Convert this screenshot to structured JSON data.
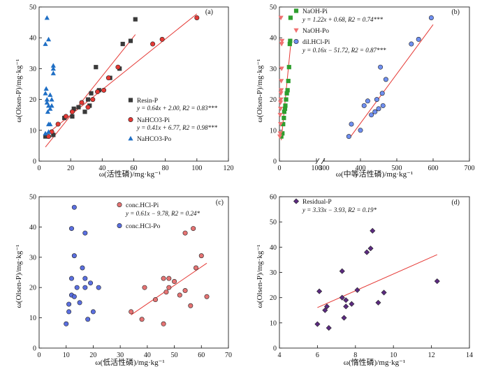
{
  "chart_data": [
    {
      "type": "scatter",
      "panel_label": "(a)",
      "xlabel": "ω(活性磷)/mg·kg⁻¹",
      "ylabel": "ω(Olsen-P)/mg·kg⁻¹",
      "xlim": [
        0,
        120
      ],
      "ylim": [
        0,
        50
      ],
      "xticks": [
        0,
        20,
        40,
        60,
        80,
        100,
        120
      ],
      "yticks": [
        0,
        10,
        20,
        30,
        40,
        50
      ],
      "legend_position": "right",
      "series": [
        {
          "name": "Resin-P",
          "equation": "y = 0.64x + 2.00, R2 = 0.83***",
          "marker": "square",
          "color": "#3a3a3a",
          "line": {
            "slope": 0.64,
            "intercept": 2.0,
            "x_range": [
              4,
              61
            ]
          },
          "points": [
            [
              4,
              8
            ],
            [
              9,
              8.5
            ],
            [
              16,
              14
            ],
            [
              21,
              14.5
            ],
            [
              22,
              17
            ],
            [
              25,
              17.5
            ],
            [
              29,
              16
            ],
            [
              31,
              20
            ],
            [
              32,
              18
            ],
            [
              33,
              22
            ],
            [
              36,
              30.5
            ],
            [
              38,
              23
            ],
            [
              45,
              27
            ],
            [
              51,
              30
            ],
            [
              53,
              38
            ],
            [
              58,
              39
            ],
            [
              61,
              46
            ]
          ]
        },
        {
          "name": "NaHCO3-Pi",
          "equation": "y = 0.41x + 6.77, R2 = 0.98***",
          "marker": "circle",
          "color": "#e53935",
          "line": {
            "slope": 0.41,
            "intercept": 6.77,
            "x_range": [
              4,
              100
            ]
          },
          "points": [
            [
              6,
              8
            ],
            [
              8,
              9.5
            ],
            [
              12,
              12
            ],
            [
              17,
              14.5
            ],
            [
              21,
              16
            ],
            [
              27,
              19
            ],
            [
              31,
              17.5
            ],
            [
              34,
              20
            ],
            [
              37,
              22.5
            ],
            [
              41,
              23
            ],
            [
              44,
              27
            ],
            [
              50,
              30.5
            ],
            [
              72,
              38
            ],
            [
              78,
              39.5
            ],
            [
              100,
              46.5
            ]
          ]
        },
        {
          "name": "NaHCO3-Po",
          "marker": "triangle",
          "color": "#1f6fc5",
          "points": [
            [
              4,
              9
            ],
            [
              4,
              22
            ],
            [
              4,
              38
            ],
            [
              4.5,
              23.5
            ],
            [
              5,
              19
            ],
            [
              5,
              20
            ],
            [
              5,
              46.5
            ],
            [
              5.5,
              16
            ],
            [
              6,
              12
            ],
            [
              6,
              18
            ],
            [
              6,
              39.5
            ],
            [
              6,
              9.5
            ],
            [
              7,
              17
            ],
            [
              7,
              21.5
            ],
            [
              7,
              12
            ],
            [
              8,
              18
            ],
            [
              8,
              20
            ],
            [
              9,
              28.5
            ],
            [
              9,
              30
            ],
            [
              9,
              31
            ]
          ]
        }
      ]
    },
    {
      "type": "scatter",
      "panel_label": "(b)",
      "xlabel": "ω(中等活性磷)/mg·kg⁻¹",
      "ylabel": "ω(Olsen-P)/mg·kg⁻¹",
      "xlim": [
        0,
        700
      ],
      "ylim": [
        0,
        50
      ],
      "axis_break": true,
      "xticks": [
        0,
        100,
        300,
        400,
        500,
        600,
        700
      ],
      "yticks": [
        0,
        10,
        20,
        30,
        40,
        50
      ],
      "legend_position": "top-right",
      "series": [
        {
          "name": "NaOH-Pi",
          "equation": "y = 1.22x + 0.68, R2 = 0.74***",
          "marker": "square",
          "color": "#2e9e2e",
          "line": {
            "slope": 1.22,
            "intercept": 0.68,
            "x_range": [
              5,
              32
            ]
          },
          "points": [
            [
              5,
              8
            ],
            [
              8,
              9
            ],
            [
              10,
              12
            ],
            [
              12,
              14
            ],
            [
              13,
              16
            ],
            [
              15,
              17
            ],
            [
              16,
              18
            ],
            [
              18,
              20
            ],
            [
              20,
              22
            ],
            [
              22,
              23
            ],
            [
              24,
              26
            ],
            [
              26,
              30.5
            ],
            [
              28,
              38
            ],
            [
              29,
              39
            ],
            [
              30,
              46.5
            ]
          ]
        },
        {
          "name": "NaOH-Po",
          "marker": "triangle-down",
          "color": "#f07070",
          "points": [
            [
              1,
              8
            ],
            [
              2,
              9
            ],
            [
              2,
              15
            ],
            [
              3,
              17
            ],
            [
              3,
              19
            ],
            [
              4,
              20
            ],
            [
              4,
              22
            ],
            [
              5,
              23
            ],
            [
              5,
              26
            ],
            [
              6,
              30
            ],
            [
              6,
              38
            ],
            [
              7,
              39
            ],
            [
              4,
              46.5
            ],
            [
              3,
              12
            ]
          ]
        },
        {
          "name": "dil.HCl-Pi",
          "equation": "y = 0.16x − 51.72, R2 = 0.87***",
          "marker": "circle",
          "color": "#6f8ff0",
          "line": {
            "slope": 0.16,
            "intercept": -51.72,
            "x_range": [
              370,
              600
            ]
          },
          "points": [
            [
              368,
              8
            ],
            [
              375,
              12
            ],
            [
              400,
              10
            ],
            [
              410,
              18
            ],
            [
              420,
              19.5
            ],
            [
              430,
              15
            ],
            [
              440,
              16
            ],
            [
              445,
              20
            ],
            [
              450,
              17
            ],
            [
              455,
              30.5
            ],
            [
              460,
              22
            ],
            [
              462,
              18
            ],
            [
              470,
              26.5
            ],
            [
              540,
              38
            ],
            [
              560,
              39.5
            ],
            [
              595,
              46.5
            ]
          ]
        }
      ]
    },
    {
      "type": "scatter",
      "panel_label": "(c)",
      "xlabel": "ω(低活性磷)/mg·kg⁻¹",
      "ylabel": "ω(Olsen-P)/mg·kg⁻¹",
      "xlim": [
        0,
        70
      ],
      "ylim": [
        0,
        50
      ],
      "xticks": [
        0,
        10,
        20,
        30,
        40,
        50,
        60,
        70
      ],
      "yticks": [
        0,
        10,
        20,
        30,
        40,
        50
      ],
      "legend_position": "top-center",
      "series": [
        {
          "name": "conc.HCl-Pi",
          "equation": "y = 0.61x − 9.78, R2 = 0.24*",
          "marker": "circle",
          "color": "#e57373",
          "line": {
            "slope": 0.61,
            "intercept": -9.78,
            "x_range": [
              34,
              62
            ]
          },
          "points": [
            [
              34,
              12
            ],
            [
              38,
              9.5
            ],
            [
              39,
              20
            ],
            [
              43,
              16
            ],
            [
              46,
              8
            ],
            [
              46,
              23
            ],
            [
              47,
              18.5
            ],
            [
              48,
              20
            ],
            [
              48,
              23
            ],
            [
              50,
              22
            ],
            [
              52,
              17.5
            ],
            [
              54,
              38
            ],
            [
              54,
              19
            ],
            [
              56,
              14
            ],
            [
              57,
              39.5
            ],
            [
              58,
              26.5
            ],
            [
              60,
              30.5
            ],
            [
              62,
              17
            ]
          ]
        },
        {
          "name": "conc.HCl-Po",
          "marker": "circle",
          "color": "#5a6fe0",
          "points": [
            [
              10,
              8
            ],
            [
              11,
              12
            ],
            [
              11,
              14.5
            ],
            [
              12,
              17.5
            ],
            [
              12,
              23
            ],
            [
              12,
              39.5
            ],
            [
              13,
              17
            ],
            [
              13,
              46.5
            ],
            [
              13,
              30.5
            ],
            [
              14,
              20
            ],
            [
              15,
              15
            ],
            [
              16,
              26.5
            ],
            [
              17,
              20
            ],
            [
              17,
              38
            ],
            [
              17,
              23
            ],
            [
              18,
              9.5
            ],
            [
              19,
              21.5
            ],
            [
              20,
              12
            ],
            [
              22,
              20
            ]
          ]
        }
      ]
    },
    {
      "type": "scatter",
      "panel_label": "(d)",
      "xlabel": "ω(惰性磷)/mg·kg⁻¹",
      "ylabel": "ω(Olsen-P)/mg·kg⁻¹",
      "xlim": [
        4,
        14
      ],
      "ylim": [
        0,
        60
      ],
      "xticks": [
        4,
        6,
        8,
        10,
        12,
        14
      ],
      "yticks": [
        0,
        10,
        20,
        30,
        40,
        50,
        60
      ],
      "legend_position": "top-left",
      "series": [
        {
          "name": "Residual-P",
          "equation": "y = 3.33x − 3.93, R2 = 0.19*",
          "marker": "diamond",
          "color": "#5b2a80",
          "line": {
            "slope": 3.33,
            "intercept": -3.93,
            "x_range": [
              6,
              12.3
            ]
          },
          "points": [
            [
              6.0,
              9.5
            ],
            [
              6.1,
              22.5
            ],
            [
              6.4,
              15
            ],
            [
              6.5,
              16.5
            ],
            [
              6.6,
              8
            ],
            [
              7.3,
              30.5
            ],
            [
              7.3,
              20
            ],
            [
              7.4,
              12
            ],
            [
              7.5,
              19
            ],
            [
              7.5,
              16.5
            ],
            [
              7.8,
              17.5
            ],
            [
              8.1,
              23
            ],
            [
              8.6,
              38
            ],
            [
              8.8,
              39.5
            ],
            [
              8.9,
              46.5
            ],
            [
              9.2,
              18
            ],
            [
              9.5,
              22
            ],
            [
              12.3,
              26.5
            ]
          ]
        }
      ]
    }
  ]
}
